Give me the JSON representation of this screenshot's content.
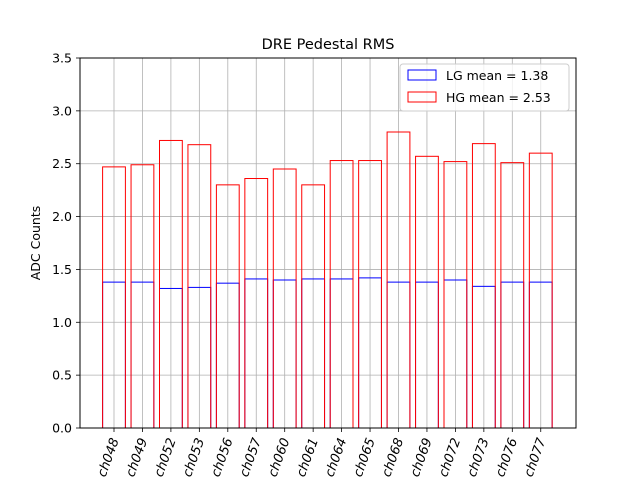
{
  "chart_data": {
    "type": "bar",
    "title": "DRE Pedestal RMS",
    "xlabel": "",
    "ylabel": "ADC Counts",
    "ylim": [
      0,
      3.5
    ],
    "yticks": [
      "0.0",
      "0.5",
      "1.0",
      "1.5",
      "2.0",
      "2.5",
      "3.0",
      "3.5"
    ],
    "grid": true,
    "legend_position": "top-right",
    "categories": [
      "ch048",
      "ch049",
      "ch052",
      "ch053",
      "ch056",
      "ch057",
      "ch060",
      "ch061",
      "ch064",
      "ch065",
      "ch068",
      "ch069",
      "ch072",
      "ch073",
      "ch076",
      "ch077"
    ],
    "series": [
      {
        "name": "LG mean = 1.38",
        "color": "#0000ff",
        "values": [
          1.38,
          1.38,
          1.32,
          1.33,
          1.37,
          1.41,
          1.4,
          1.41,
          1.41,
          1.42,
          1.38,
          1.38,
          1.4,
          1.34,
          1.38,
          1.38
        ]
      },
      {
        "name": "HG mean = 2.53",
        "color": "#ff0000",
        "values": [
          2.47,
          2.49,
          2.72,
          2.68,
          2.3,
          2.36,
          2.45,
          2.3,
          2.53,
          2.53,
          2.8,
          2.57,
          2.52,
          2.69,
          2.51,
          2.6
        ]
      }
    ]
  }
}
